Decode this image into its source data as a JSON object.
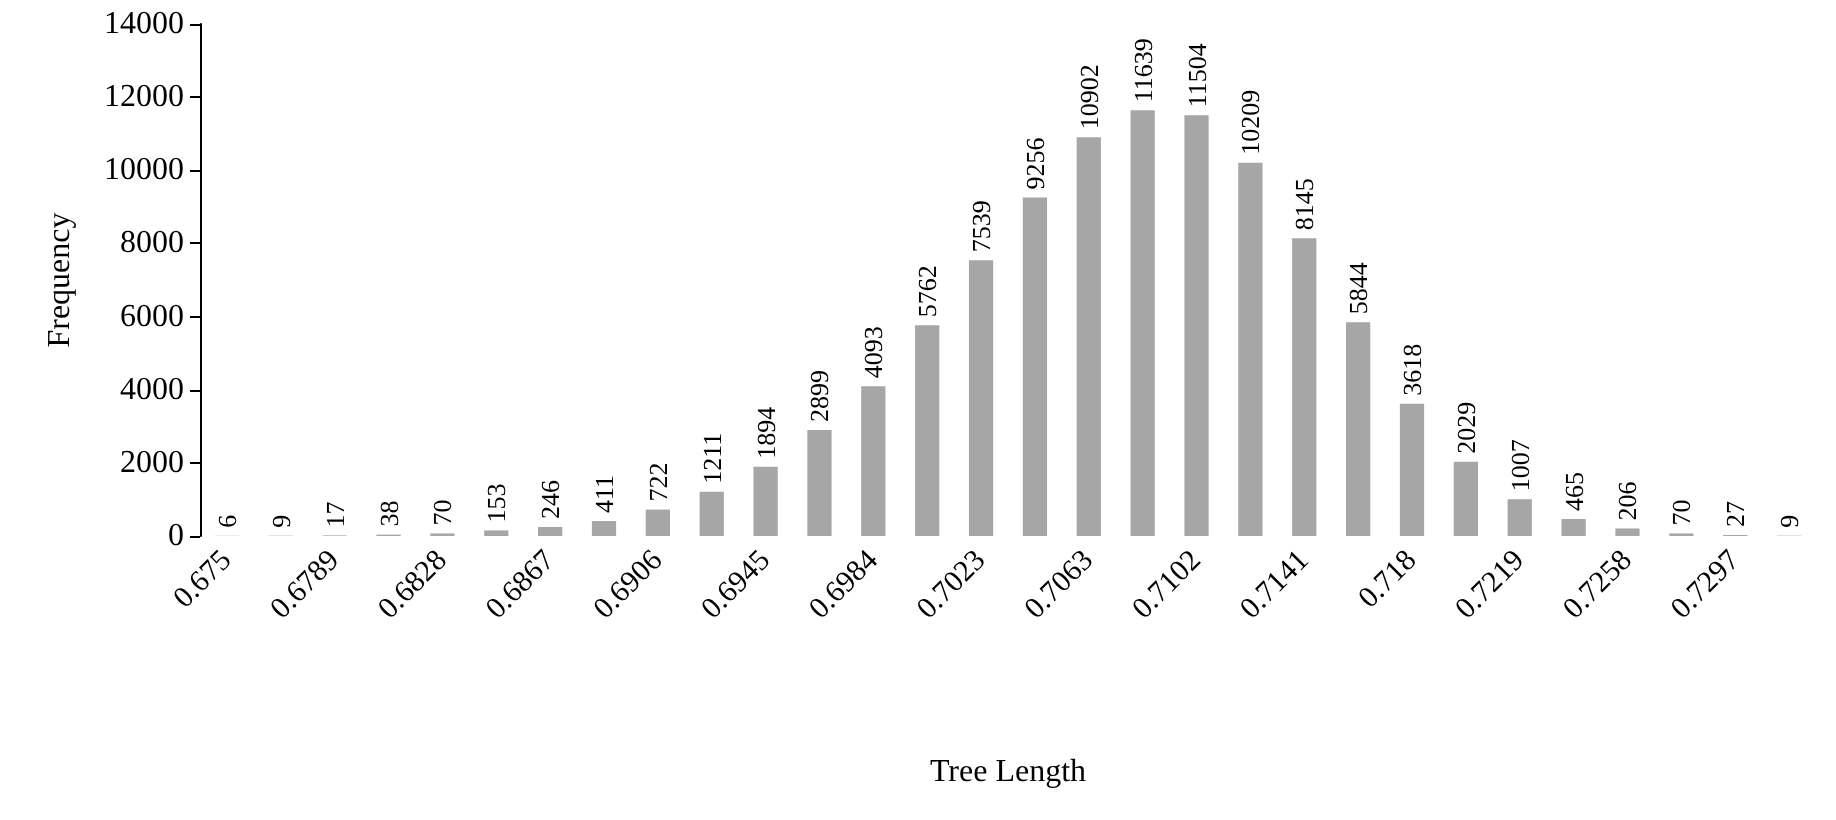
{
  "chart_data": {
    "type": "bar",
    "xlabel": "Tree Length",
    "ylabel": "Frequency",
    "categories": [
      "0.675",
      null,
      "0.6789",
      null,
      "0.6828",
      null,
      "0.6867",
      null,
      "0.6906",
      null,
      "0.6945",
      null,
      "0.6984",
      null,
      "0.7023",
      null,
      "0.7063",
      null,
      "0.7102",
      null,
      "0.7141",
      null,
      "0.718",
      null,
      "0.7219",
      null,
      "0.7258",
      null,
      "0.7297",
      null
    ],
    "values": [
      6,
      9,
      17,
      38,
      70,
      153,
      246,
      411,
      722,
      1211,
      1894,
      2899,
      4093,
      5762,
      7539,
      9256,
      10902,
      11639,
      11504,
      10209,
      8145,
      5844,
      3618,
      2029,
      1007,
      465,
      206,
      70,
      27,
      9
    ],
    "color": "#a6a6a6",
    "ylim": [
      0,
      14000
    ],
    "yticks": [
      0,
      2000,
      4000,
      6000,
      8000,
      10000,
      12000,
      14000
    ],
    "grid": false,
    "data_labels": true
  }
}
